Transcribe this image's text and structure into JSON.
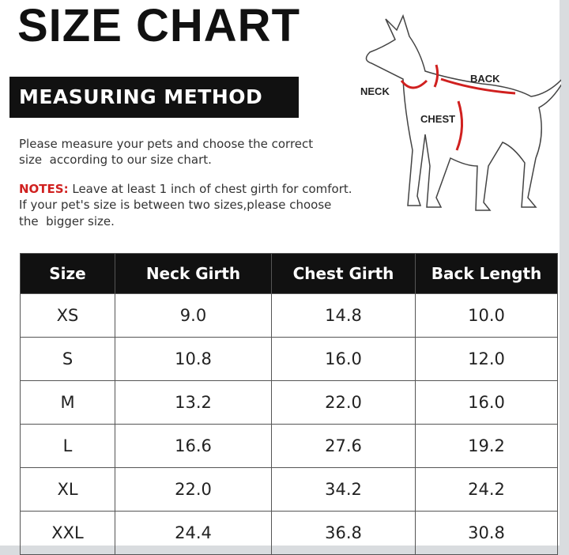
{
  "header": {
    "title": "SIZE CHART",
    "section": "MEASURING METHOD"
  },
  "intro": {
    "lines": [
      "Please measure your pets and choose the correct",
      "size  according to our size chart."
    ]
  },
  "notes": {
    "label": "NOTES:",
    "lines": [
      " Leave at least 1 inch of chest girth for comfort.",
      "If your pet's size is between two sizes,please choose",
      "the  bigger size."
    ]
  },
  "diagram": {
    "labels": {
      "neck": "NECK",
      "back": "BACK",
      "chest": "CHEST"
    }
  },
  "table": {
    "headers": [
      "Size",
      "Neck Girth",
      "Chest Girth",
      "Back Length"
    ],
    "rows": [
      [
        "XS",
        "9.0",
        "14.8",
        "10.0"
      ],
      [
        "S",
        "10.8",
        "16.0",
        "12.0"
      ],
      [
        "M",
        "13.2",
        "22.0",
        "16.0"
      ],
      [
        "L",
        "16.6",
        "27.6",
        "19.2"
      ],
      [
        "XL",
        "22.0",
        "34.2",
        "24.2"
      ],
      [
        "XXL",
        "24.4",
        "36.8",
        "30.8"
      ]
    ]
  }
}
